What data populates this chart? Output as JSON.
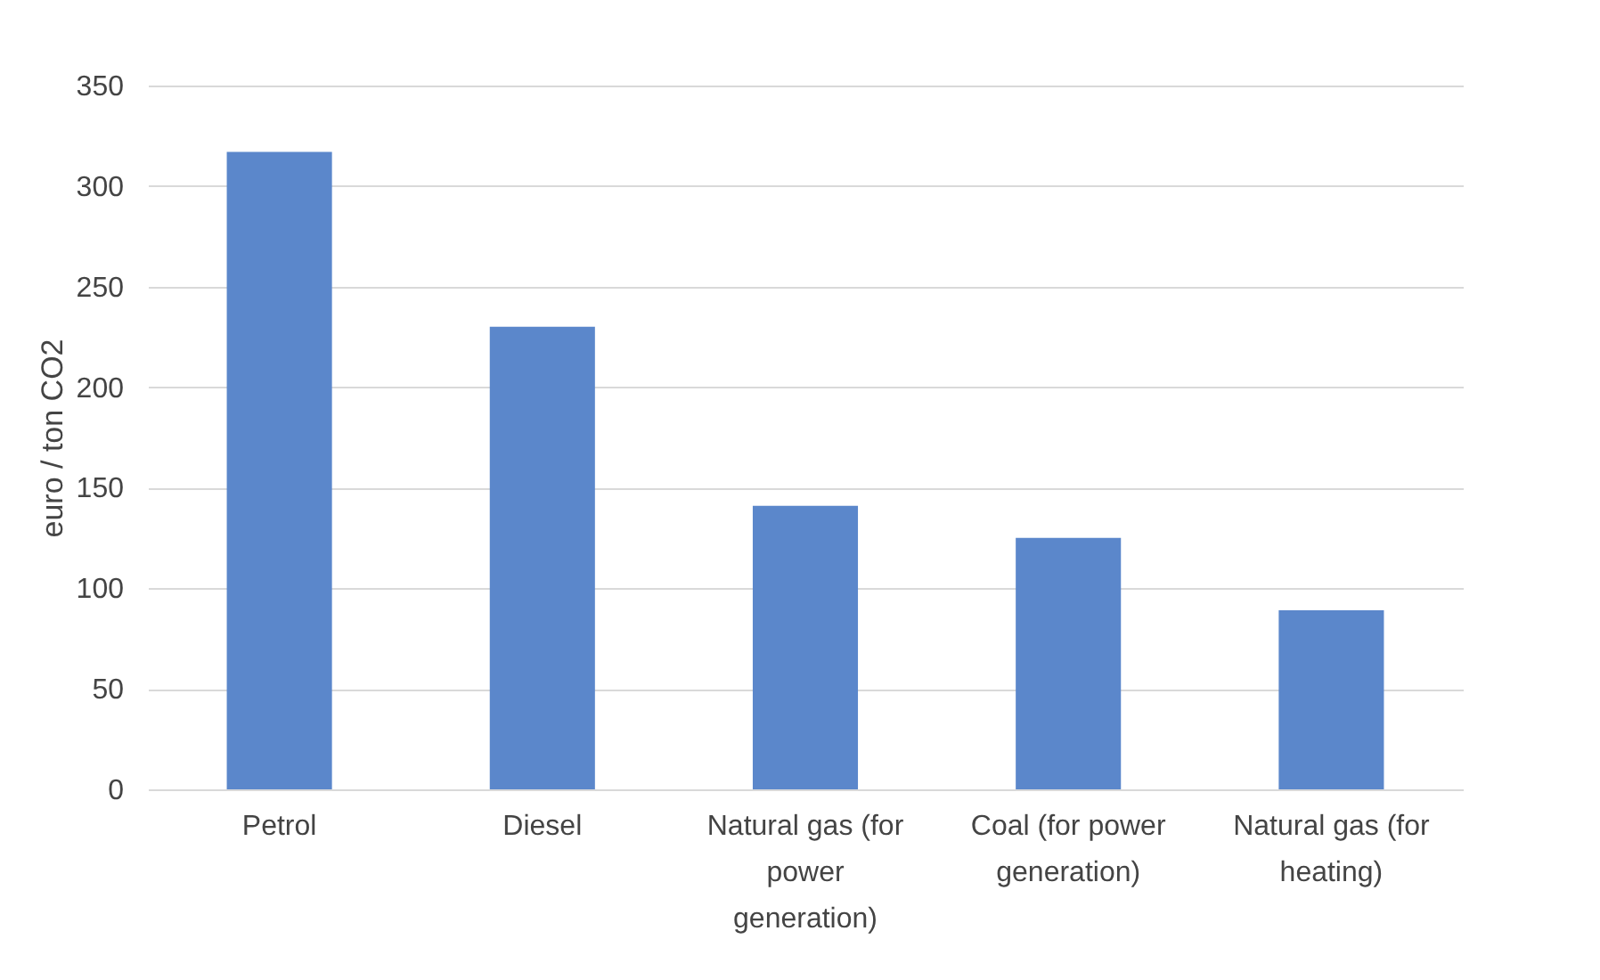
{
  "chart_data": {
    "type": "bar",
    "ylabel": "euro / ton CO2",
    "categories": [
      "Petrol",
      "Diesel",
      "Natural gas (for power generation)",
      "Coal (for power generation)",
      "Natural gas (for heating)"
    ],
    "values": [
      317,
      230,
      141,
      125,
      89
    ],
    "color": "#5b87cb",
    "ylim": [
      0,
      350
    ],
    "yticks": [
      0,
      50,
      100,
      150,
      200,
      250,
      300,
      350
    ],
    "grid": "y"
  }
}
